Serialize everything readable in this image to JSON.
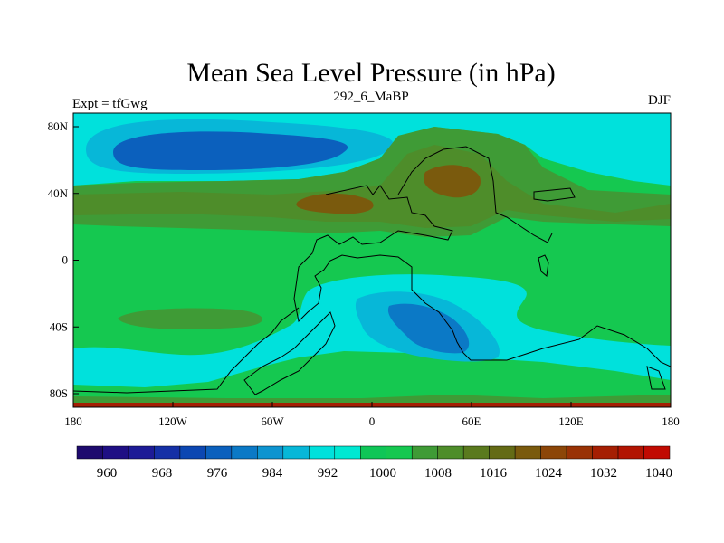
{
  "title": "Mean Sea Level Pressure (in hPa)",
  "left_string": "Expt = tfGwg",
  "center_string": "292_6_MaBP",
  "right_string": "DJF",
  "x_ticks": [
    "180",
    "120W",
    "60W",
    "0",
    "60E",
    "120E",
    "180"
  ],
  "y_ticks": [
    "80N",
    "40N",
    "0",
    "40S",
    "80S"
  ],
  "colorbar": {
    "labels": [
      "960",
      "968",
      "976",
      "984",
      "992",
      "1000",
      "1008",
      "1016",
      "1024",
      "1032",
      "1040"
    ],
    "colors": [
      "#1e0a6e",
      "#1f0f84",
      "#1d1b96",
      "#1530a6",
      "#0c47b2",
      "#0b60bd",
      "#0b79c6",
      "#0d94d0",
      "#07b7d8",
      "#00e1dc",
      "#00e8d2",
      "#0fc657",
      "#15c850",
      "#3f9b36",
      "#4e8d2a",
      "#5a7a1e",
      "#646b15",
      "#7a5a0d",
      "#8c4608",
      "#993205",
      "#a51f03",
      "#b21402",
      "#c10a02"
    ]
  },
  "colors": {
    "cyan": "#00e1dc",
    "lightblue": "#07b7d8",
    "blue": "#0b79c6",
    "darkblue": "#0b60bd",
    "green": "#15c850",
    "olive": "#3f9b36",
    "darkolive": "#4e8d2a",
    "brown": "#7a5a0d",
    "red": "#a51f03"
  }
}
